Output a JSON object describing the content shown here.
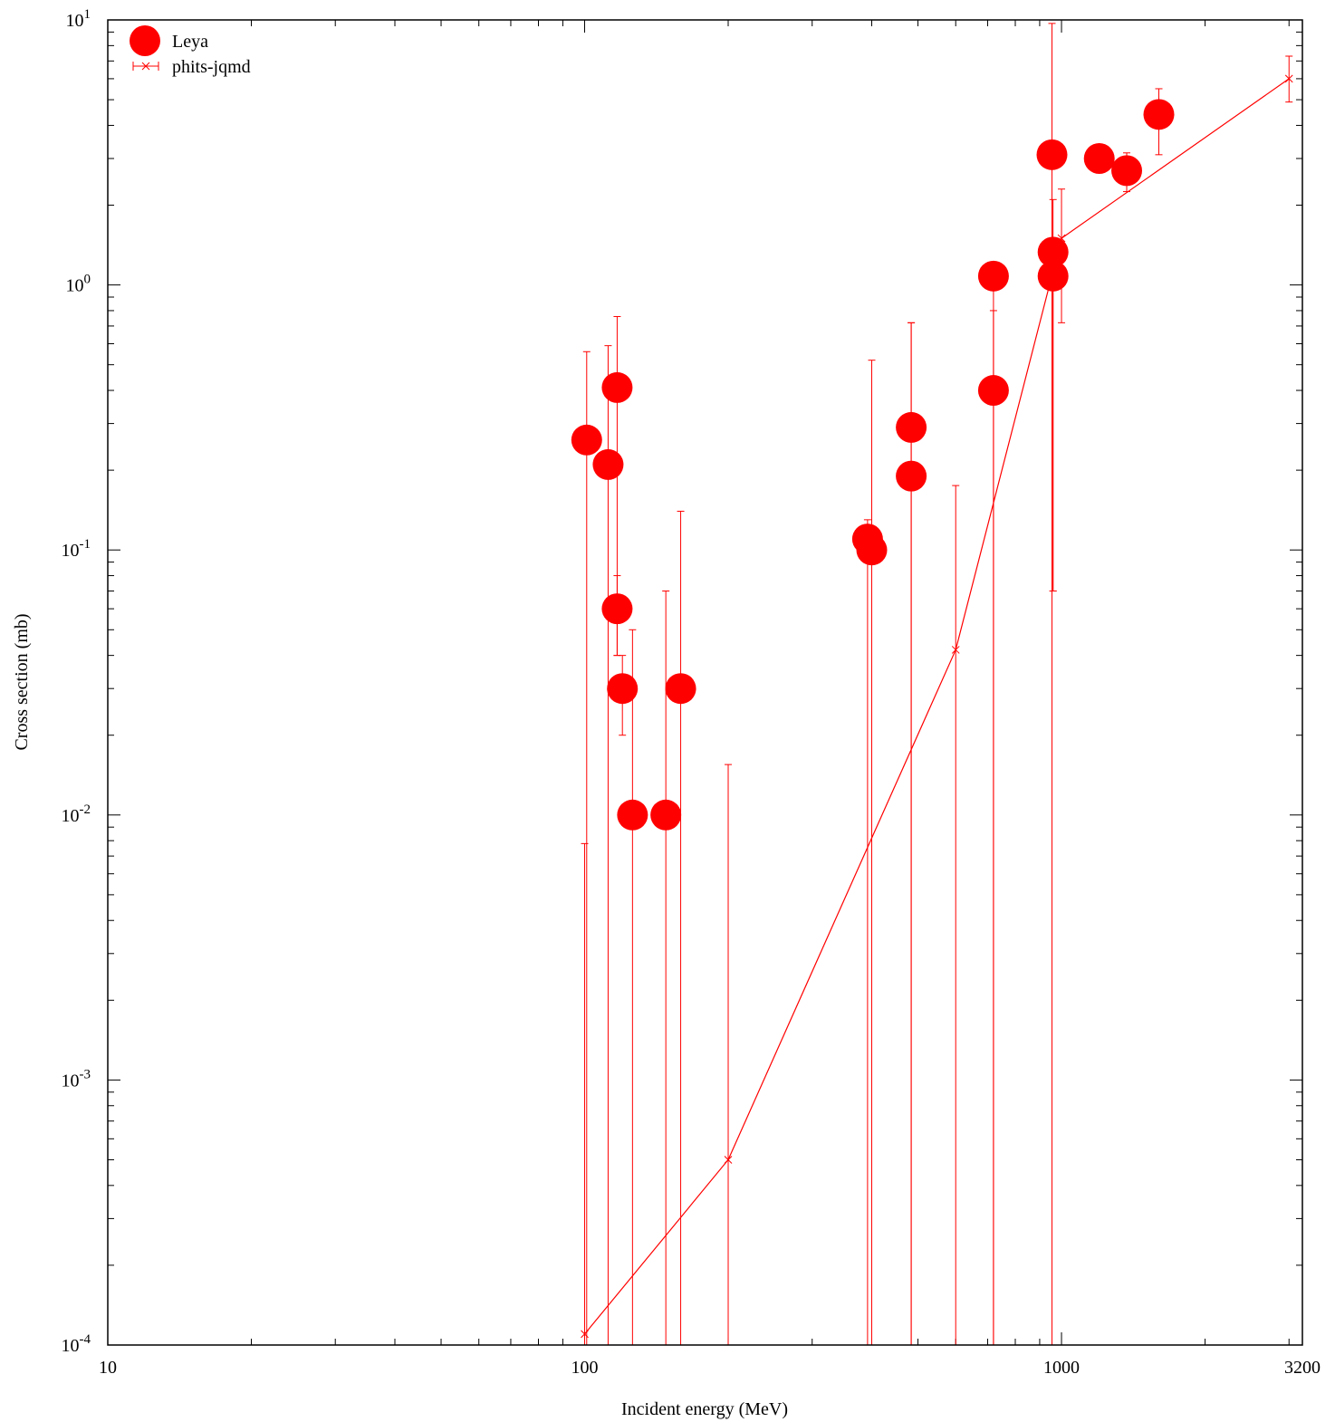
{
  "chart_data": {
    "type": "scatter",
    "title": "",
    "xlabel": "Incident energy (MeV)",
    "ylabel": "Cross section (mb)",
    "x_scale": "log",
    "y_scale": "log",
    "xlim": [
      10,
      3200
    ],
    "ylim": [
      0.0001,
      10
    ],
    "x_ticks": [
      {
        "value": 10,
        "label": "10"
      },
      {
        "value": 100,
        "label": "100"
      },
      {
        "value": 1000,
        "label": "1000"
      },
      {
        "value": 3200,
        "label": "3200"
      }
    ],
    "y_ticks": [
      {
        "value": 0.0001,
        "base": "10",
        "exp": "-4"
      },
      {
        "value": 0.001,
        "base": "10",
        "exp": "-3"
      },
      {
        "value": 0.01,
        "base": "10",
        "exp": "-2"
      },
      {
        "value": 0.1,
        "base": "10",
        "exp": "-1"
      },
      {
        "value": 1,
        "base": "10",
        "exp": "0"
      },
      {
        "value": 10,
        "base": "10",
        "exp": "1"
      }
    ],
    "grid": false,
    "legend_position": "top-left",
    "color": "#ff0000",
    "series": [
      {
        "name": "Leya",
        "style": "filled-circle-errorbar",
        "points": [
          {
            "x": 101,
            "y": 0.26,
            "ylo": 0.0001,
            "yhi": 0.56
          },
          {
            "x": 112,
            "y": 0.21,
            "ylo": 0.0001,
            "yhi": 0.59
          },
          {
            "x": 117,
            "y": 0.41,
            "ylo": 0.04,
            "yhi": 0.76
          },
          {
            "x": 117,
            "y": 0.06,
            "ylo": 0.04,
            "yhi": 0.08
          },
          {
            "x": 120,
            "y": 0.03,
            "ylo": 0.02,
            "yhi": 0.04
          },
          {
            "x": 126,
            "y": 0.01,
            "ylo": 0.0001,
            "yhi": 0.05
          },
          {
            "x": 148,
            "y": 0.01,
            "ylo": 0.0001,
            "yhi": 0.07
          },
          {
            "x": 159,
            "y": 0.03,
            "ylo": 0.0001,
            "yhi": 0.14
          },
          {
            "x": 392,
            "y": 0.11,
            "ylo": 0.0001,
            "yhi": 0.13
          },
          {
            "x": 400,
            "y": 0.1,
            "ylo": 0.0001,
            "yhi": 0.52
          },
          {
            "x": 484,
            "y": 0.29,
            "ylo": 0.0001,
            "yhi": 0.72
          },
          {
            "x": 484,
            "y": 0.19,
            "ylo": 0.0001,
            "yhi": 0.72
          },
          {
            "x": 720,
            "y": 1.08,
            "ylo": 0.0001,
            "yhi": 1.08
          },
          {
            "x": 720,
            "y": 0.4,
            "ylo": 0.0001,
            "yhi": 0.8
          },
          {
            "x": 960,
            "y": 1.33,
            "ylo": 0.07,
            "yhi": 2.1
          },
          {
            "x": 960,
            "y": 1.08,
            "ylo": 0.07,
            "yhi": 1.08
          },
          {
            "x": 955,
            "y": 3.1,
            "ylo": 0.0001,
            "yhi": 9.7
          },
          {
            "x": 1200,
            "y": 3.0,
            "ylo": 3.0,
            "yhi": 3.0
          },
          {
            "x": 1370,
            "y": 2.7,
            "ylo": 2.25,
            "yhi": 3.15
          },
          {
            "x": 1600,
            "y": 4.4,
            "ylo": 3.1,
            "yhi": 5.5
          }
        ]
      },
      {
        "name": "phits-jqmd",
        "style": "cross-line-errorbar",
        "points": [
          {
            "x": 100,
            "y": 0.00011,
            "ylo": 0.0001,
            "yhi": 0.0078
          },
          {
            "x": 200,
            "y": 0.0005,
            "ylo": 0.0001,
            "yhi": 0.0155
          },
          {
            "x": 600,
            "y": 0.042,
            "ylo": 0.0001,
            "yhi": 0.175
          },
          {
            "x": 1000,
            "y": 1.5,
            "ylo": 0.72,
            "yhi": 2.3
          },
          {
            "x": 3000,
            "y": 6.0,
            "ylo": 4.9,
            "yhi": 7.3
          }
        ]
      }
    ]
  }
}
